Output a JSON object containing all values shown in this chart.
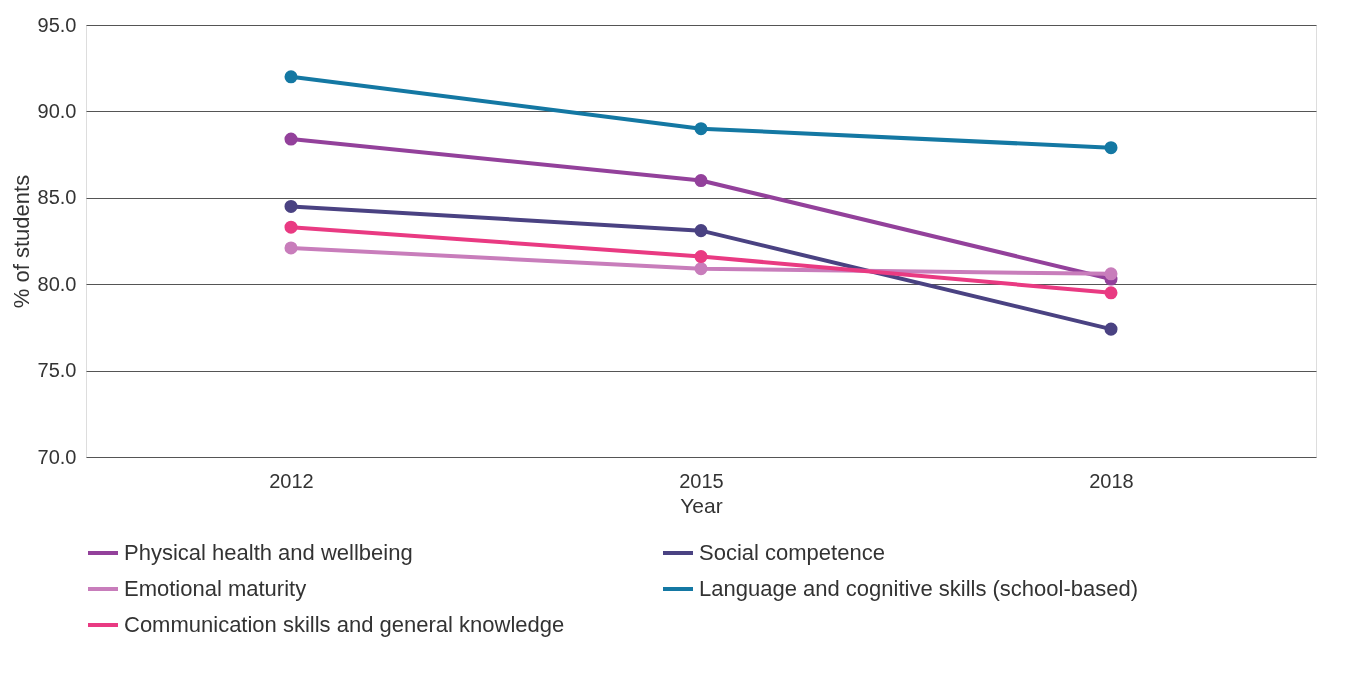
{
  "chart_data": {
    "type": "line",
    "xlabel": "Year",
    "ylabel": "% of students",
    "categories": [
      "2012",
      "2015",
      "2018"
    ],
    "ylim": [
      70,
      95
    ],
    "yticks": [
      {
        "value": 70,
        "label": "70.0"
      },
      {
        "value": 75,
        "label": "75.0"
      },
      {
        "value": 80,
        "label": "80.0"
      },
      {
        "value": 85,
        "label": "85.0"
      },
      {
        "value": 90,
        "label": "90.0"
      },
      {
        "value": 95,
        "label": "95.0"
      }
    ],
    "grid": "y",
    "legend": "bottom",
    "marker": "circle",
    "line_style": "solid",
    "series": [
      {
        "name": "Physical health and wellbeing",
        "color": "#93419b",
        "values": [
          88.4,
          86.0,
          80.3
        ]
      },
      {
        "name": "Social competence",
        "color": "#4a4282",
        "values": [
          84.5,
          83.1,
          77.4
        ]
      },
      {
        "name": "Emotional maturity",
        "color": "#c87dbb",
        "values": [
          82.1,
          80.9,
          80.6
        ]
      },
      {
        "name": "Language and cognitive skills (school-based)",
        "color": "#1478a3",
        "values": [
          92.0,
          89.0,
          87.9
        ]
      },
      {
        "name": "Communication skills and general knowledge",
        "color": "#e93a82",
        "values": [
          83.3,
          81.6,
          79.5
        ]
      }
    ]
  }
}
